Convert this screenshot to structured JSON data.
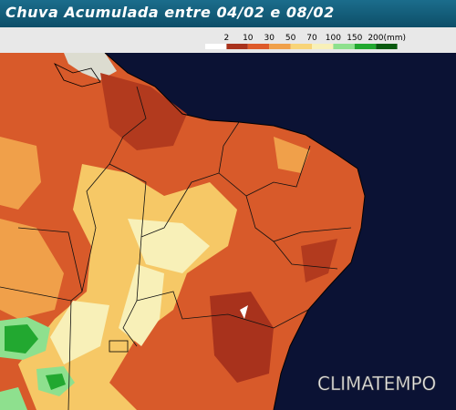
{
  "header": {
    "title": "Chuva Acumulada entre 04/02 e 08/02"
  },
  "legend": {
    "labels": [
      "2",
      "10",
      "30",
      "50",
      "70",
      "100",
      "150",
      "200(mm)"
    ],
    "colors": [
      "#ffffff",
      "#a8321c",
      "#de5a2a",
      "#f0a04a",
      "#f8d478",
      "#f8f0b8",
      "#8ee08e",
      "#22a830",
      "#0a5a10"
    ]
  },
  "watermark": "CLIMATEMPO"
}
